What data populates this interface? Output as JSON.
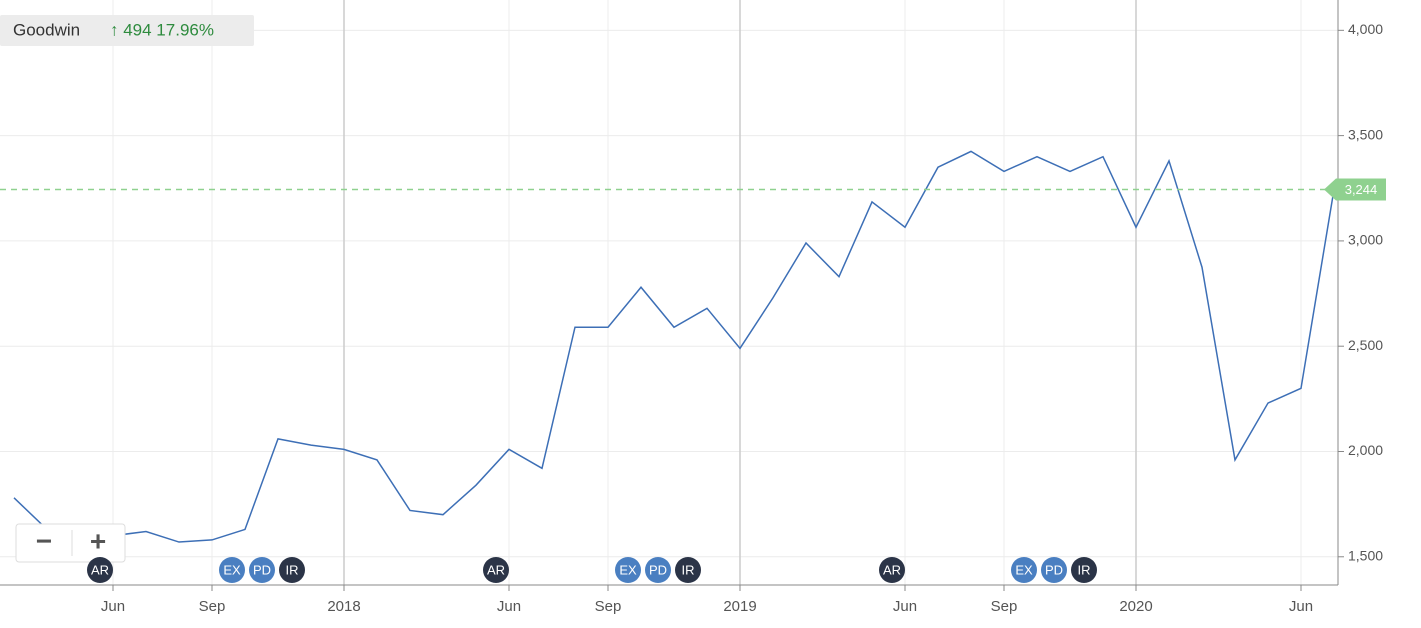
{
  "header": {
    "name": "Goodwin",
    "change": "↑ 494 17.96%"
  },
  "zoom": {
    "out": "−",
    "in": "+"
  },
  "chart_data": {
    "type": "line",
    "x": [
      "2017-02",
      "2017-03",
      "2017-04",
      "2017-05",
      "2017-06",
      "2017-07",
      "2017-08",
      "2017-09",
      "2017-10",
      "2017-11",
      "2017-12",
      "2018-01",
      "2018-02",
      "2018-03",
      "2018-04",
      "2018-05",
      "2018-06",
      "2018-07",
      "2018-08",
      "2018-09",
      "2018-10",
      "2018-11",
      "2018-12",
      "2019-01",
      "2019-02",
      "2019-03",
      "2019-04",
      "2019-05",
      "2019-06",
      "2019-07",
      "2019-08",
      "2019-09",
      "2019-10",
      "2019-11",
      "2019-12",
      "2020-01",
      "2020-02",
      "2020-03",
      "2020-04",
      "2020-05",
      "2020-06"
    ],
    "series": [
      {
        "name": "Goodwin",
        "color": "#3d6fb6",
        "values": [
          1780,
          1630,
          1620,
          1600,
          1620,
          1570,
          1580,
          1630,
          2060,
          2030,
          2010,
          1960,
          1720,
          1700,
          1840,
          2010,
          1920,
          2590,
          2590,
          2780,
          2590,
          2680,
          2490,
          2730,
          2990,
          2830,
          3185,
          3065,
          3350,
          3425,
          3330,
          3400,
          3330,
          3400,
          3065,
          3380,
          2875,
          1960,
          2230,
          2300,
          3244
        ]
      }
    ],
    "last_price": {
      "value": 3244,
      "label": "3,244",
      "color": "#8fd18f"
    },
    "ylim": [
      1366,
      4144
    ],
    "yticks": [
      {
        "value": 1500,
        "label": "1,500"
      },
      {
        "value": 2000,
        "label": "2,000"
      },
      {
        "value": 2500,
        "label": "2,500"
      },
      {
        "value": 3000,
        "label": "3,000"
      },
      {
        "value": 3500,
        "label": "3,500"
      },
      {
        "value": 4000,
        "label": "4,000"
      }
    ],
    "xticks": [
      {
        "value": "2017-06",
        "label": "Jun"
      },
      {
        "value": "2017-09",
        "label": "Sep"
      },
      {
        "value": "2018-01",
        "label": "2018"
      },
      {
        "value": "2018-06",
        "label": "Jun"
      },
      {
        "value": "2018-09",
        "label": "Sep"
      },
      {
        "value": "2019-01",
        "label": "2019"
      },
      {
        "value": "2019-06",
        "label": "Jun"
      },
      {
        "value": "2019-09",
        "label": "Sep"
      },
      {
        "value": "2020-01",
        "label": "2020"
      },
      {
        "value": "2020-06",
        "label": "Jun"
      }
    ],
    "grid": true,
    "events": [
      {
        "x": "2017-05",
        "labels": [
          "AR"
        ]
      },
      {
        "x": "2017-09",
        "labels": [
          "EX",
          "PD",
          "IR"
        ]
      },
      {
        "x": "2018-05",
        "labels": [
          "AR"
        ]
      },
      {
        "x": "2018-09",
        "labels": [
          "EX",
          "PD",
          "IR"
        ]
      },
      {
        "x": "2019-05",
        "labels": [
          "AR"
        ]
      },
      {
        "x": "2019-09",
        "labels": [
          "EX",
          "PD",
          "IR"
        ]
      }
    ]
  }
}
